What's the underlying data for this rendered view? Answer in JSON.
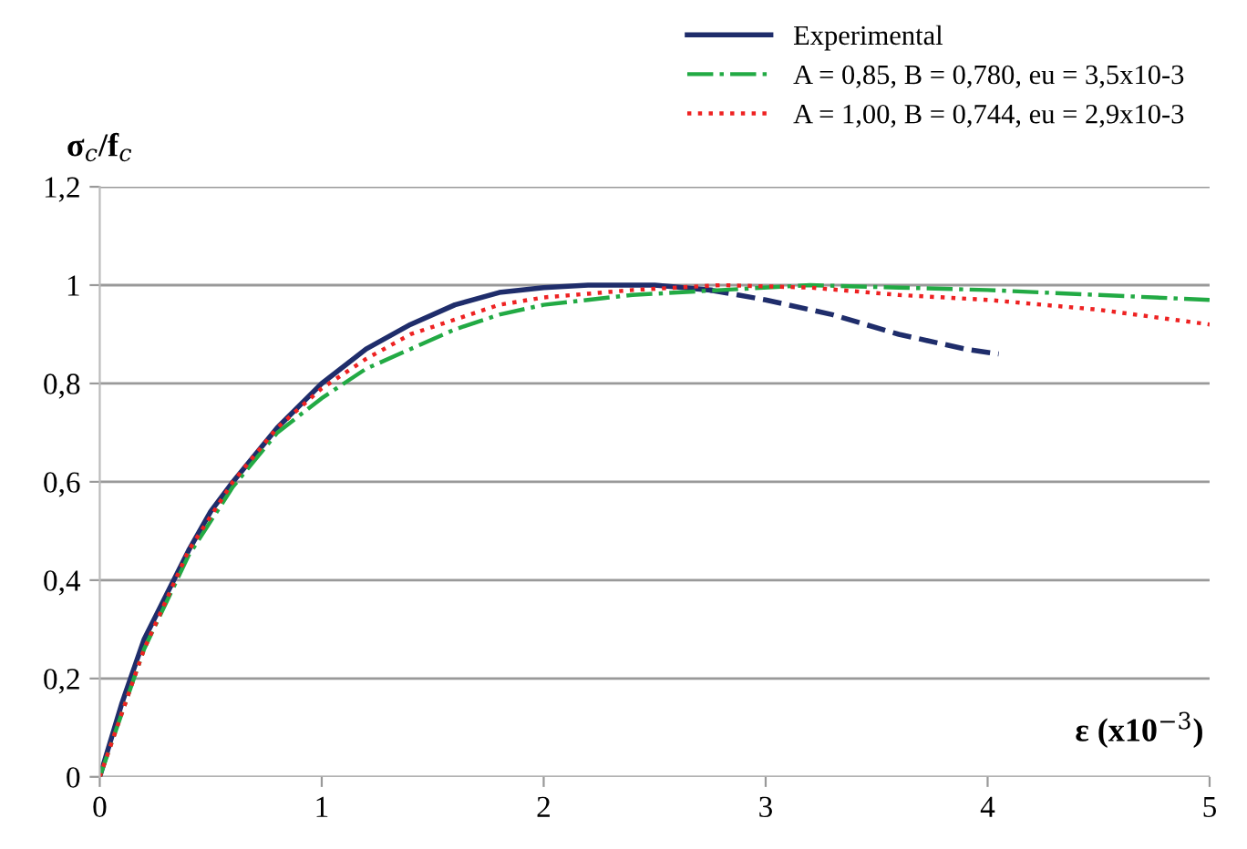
{
  "chart_data": {
    "type": "line",
    "xlabel": "ε (x10$^{−3}$)",
    "ylabel": "σ$_{c}$/f$_{c}$",
    "xlim": [
      0,
      5
    ],
    "xticks": [
      0,
      1,
      2,
      3,
      4,
      5
    ],
    "ylim": [
      0,
      1.2
    ],
    "yticks": [
      0,
      {
        "value": 0.2,
        "label": "0,2"
      },
      {
        "value": 0.4,
        "label": "0,4"
      },
      {
        "value": 0.6,
        "label": "0,6"
      },
      {
        "value": 0.8,
        "label": "0,8"
      },
      1,
      {
        "value": 1.2,
        "label": "1,2"
      }
    ],
    "grid": "y",
    "legend": "top right",
    "marker": "none",
    "series": [
      {
        "name": "Experimental",
        "color": "#1f2d6b",
        "line_style": "solid",
        "x": [
          0,
          0.1,
          0.2,
          0.3,
          0.4,
          0.5,
          0.6,
          0.8,
          1.0,
          1.2,
          1.4,
          1.6,
          1.8,
          2.0,
          2.2,
          2.5,
          2.75
        ],
        "values": [
          0,
          0.15,
          0.28,
          0.37,
          0.46,
          0.54,
          0.6,
          0.71,
          0.8,
          0.87,
          0.92,
          0.96,
          0.985,
          0.995,
          1.0,
          1.0,
          0.99
        ]
      },
      {
        "color": "#1f2d6b",
        "line_style": "dashed",
        "x": [
          2.75,
          3.0,
          3.3,
          3.6,
          3.9,
          4.05
        ],
        "values": [
          0.99,
          0.97,
          0.94,
          0.9,
          0.87,
          0.86
        ]
      },
      {
        "name": "A = 0,85, B = 0,780, eu = 3,5x10-3",
        "color": "#22aa44",
        "line_style": "dashdot",
        "x": [
          0,
          0.2,
          0.4,
          0.6,
          0.8,
          1.0,
          1.2,
          1.4,
          1.6,
          1.8,
          2.0,
          2.4,
          2.8,
          3.2,
          3.6,
          4.0,
          4.5,
          5
        ],
        "values": [
          0,
          0.26,
          0.45,
          0.59,
          0.7,
          0.77,
          0.83,
          0.87,
          0.91,
          0.94,
          0.96,
          0.98,
          0.99,
          1.0,
          0.995,
          0.99,
          0.98,
          0.97
        ]
      },
      {
        "name": "A = 1,00, B = 0,744, eu = 2,9x10-3",
        "color": "#ee2222",
        "line_style": "dotted",
        "x": [
          0,
          0.2,
          0.4,
          0.6,
          0.8,
          1.0,
          1.2,
          1.4,
          1.6,
          1.8,
          2.0,
          2.4,
          2.8,
          3.2,
          3.6,
          4.0,
          4.5,
          5
        ],
        "values": [
          0,
          0.26,
          0.46,
          0.6,
          0.71,
          0.79,
          0.85,
          0.9,
          0.93,
          0.96,
          0.975,
          0.99,
          1.0,
          0.995,
          0.98,
          0.97,
          0.95,
          0.92
        ]
      }
    ]
  }
}
